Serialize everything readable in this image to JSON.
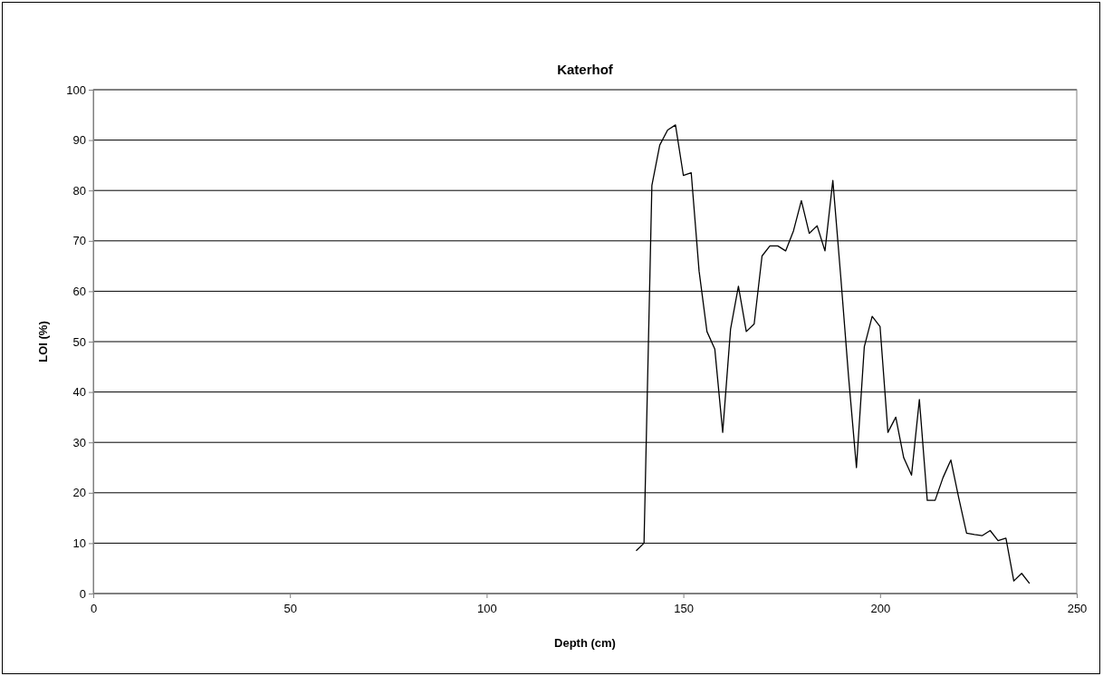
{
  "chart_data": {
    "type": "line",
    "title": "Katerhof",
    "xlabel": "Depth (cm)",
    "ylabel": "LOI (%)",
    "x": [
      138,
      140,
      142,
      144,
      146,
      148,
      150,
      152,
      154,
      156,
      158,
      160,
      162,
      164,
      166,
      168,
      170,
      172,
      174,
      176,
      178,
      180,
      182,
      184,
      186,
      188,
      190,
      192,
      194,
      196,
      198,
      200,
      202,
      204,
      206,
      208,
      210,
      212,
      214,
      216,
      218,
      220,
      222,
      224,
      226,
      228,
      230,
      232,
      234,
      236,
      238
    ],
    "series": [
      {
        "color": "#000000",
        "values": [
          8.5,
          10,
          81,
          89,
          92,
          93,
          83,
          83.5,
          64,
          52,
          48.5,
          32,
          52.5,
          61,
          52,
          53.5,
          67,
          69,
          69,
          68,
          72,
          78,
          71.5,
          73,
          68,
          82,
          63,
          43,
          25,
          49,
          55,
          53,
          32,
          35,
          27,
          23.5,
          38.5,
          18.5,
          18.5,
          23,
          26.5,
          19,
          12,
          11.7,
          11.5,
          12.5,
          10.5,
          11,
          2.5,
          4,
          2
        ]
      }
    ],
    "xlim": [
      0,
      250
    ],
    "xticks": [
      0,
      50,
      100,
      150,
      200,
      250
    ],
    "ylim": [
      0,
      100
    ],
    "yticks": [
      0,
      10,
      20,
      30,
      40,
      50,
      60,
      70,
      80,
      90,
      100
    ],
    "grid": "y",
    "marker": "none",
    "line_style": "solid"
  }
}
